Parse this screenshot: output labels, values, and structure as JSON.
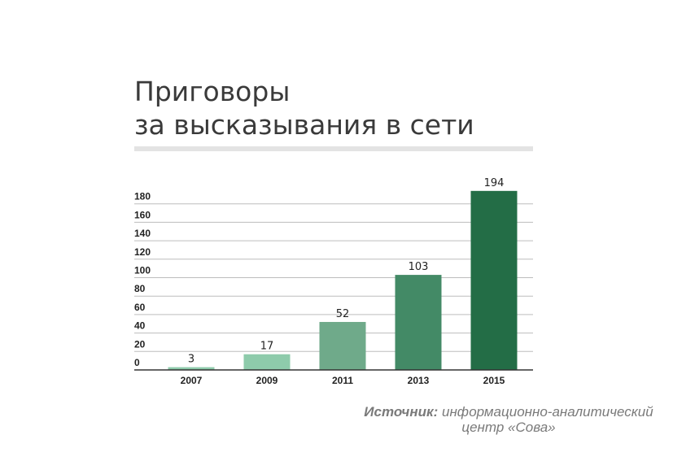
{
  "chart_data": {
    "type": "bar",
    "title": [
      "Приговоры",
      "за высказывания в сети"
    ],
    "categories": [
      "2007",
      "2009",
      "2011",
      "2013",
      "2015"
    ],
    "values": [
      3,
      17,
      52,
      103,
      194
    ],
    "data_labels": [
      "3",
      "17",
      "52",
      "103",
      "194"
    ],
    "y_ticks": [
      0,
      20,
      40,
      60,
      80,
      100,
      120,
      140,
      160,
      180
    ],
    "ylim": [
      0,
      200
    ],
    "grid": true,
    "legend": "none",
    "xlabel": "",
    "ylabel": "",
    "colors": [
      "#8ecbab",
      "#8ecbab",
      "#6faa8a",
      "#438a66",
      "#236d46"
    ]
  },
  "source": {
    "label": "Источник:",
    "text_line1": "информационно-аналитический",
    "text_line2": "центр «Сова»"
  },
  "style": {
    "gridline_color": "#bdbdbd",
    "axis_color": "#333333",
    "text_color": "#222222"
  }
}
